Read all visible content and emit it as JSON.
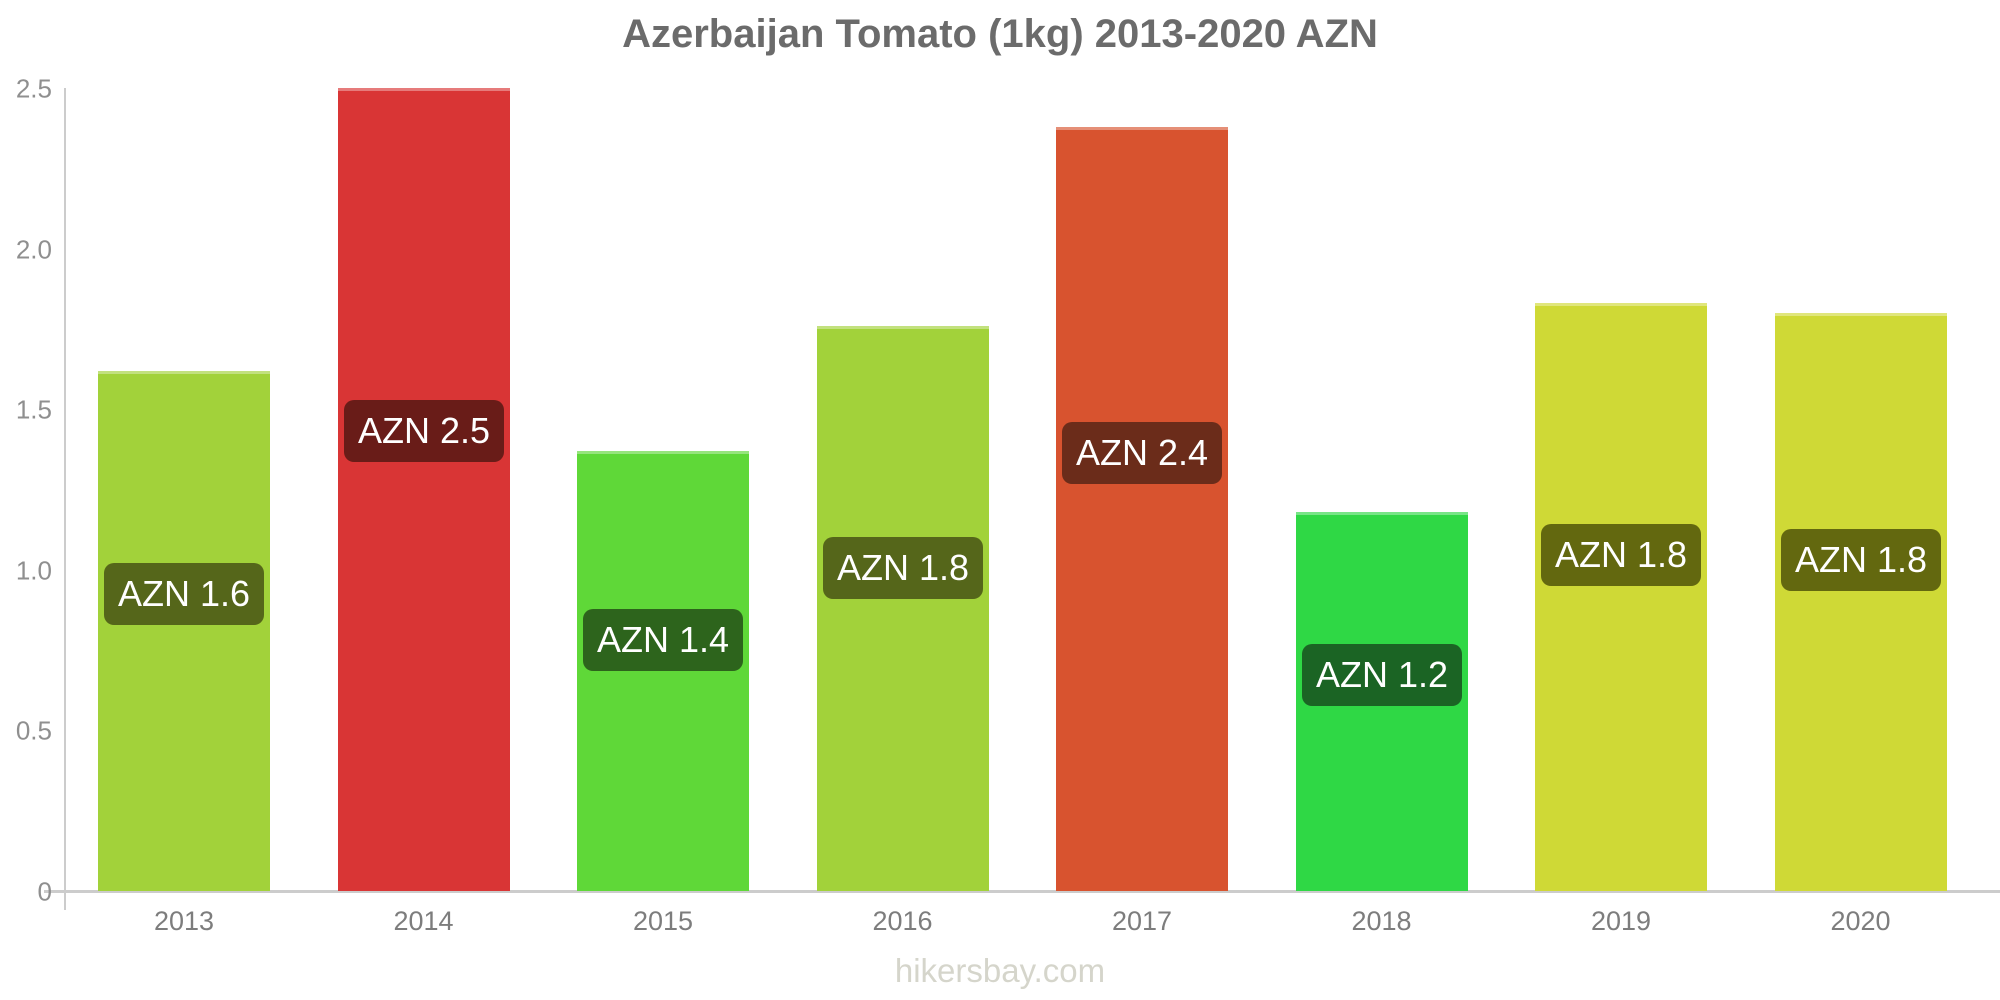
{
  "chart_data": {
    "type": "bar",
    "title": "Azerbaijan Tomato (1kg) 2013-2020 AZN",
    "xlabel": "",
    "ylabel": "",
    "ylim": [
      0,
      2.5
    ],
    "grid": false,
    "legend": false,
    "categories": [
      "2013",
      "2014",
      "2015",
      "2016",
      "2017",
      "2018",
      "2019",
      "2020"
    ],
    "values": [
      1.62,
      2.5,
      1.37,
      1.76,
      2.38,
      1.18,
      1.83,
      1.8
    ],
    "bar_labels": [
      "AZN 1.6",
      "AZN 2.5",
      "AZN 1.4",
      "AZN 1.8",
      "AZN 2.4",
      "AZN 1.2",
      "AZN 1.8",
      "AZN 1.8"
    ],
    "bar_colors": [
      "#a2d23a",
      "#d93535",
      "#5fd838",
      "#a2d23a",
      "#d8532f",
      "#2fd845",
      "#cfd936",
      "#cfd936"
    ],
    "badge_colors": [
      "#55661a",
      "#691c18",
      "#2d641c",
      "#55661a",
      "#6b2c1a",
      "#1b6424",
      "#63680f",
      "#63680f"
    ],
    "badge_text_color": "#ffffff",
    "y_ticks": [
      {
        "label": "0",
        "value": 0
      },
      {
        "label": "0.5",
        "value": 0.5
      },
      {
        "label": "1.0",
        "value": 1.0
      },
      {
        "label": "1.5",
        "value": 1.5
      },
      {
        "label": "2.0",
        "value": 2.0
      },
      {
        "label": "2.5",
        "value": 2.5
      }
    ],
    "axis_color": "#cccccc",
    "y_tick_label_color": "#8f8f8f",
    "x_tick_label_color": "#7d7d7d"
  },
  "footer": {
    "watermark": "hikersbay.com"
  }
}
